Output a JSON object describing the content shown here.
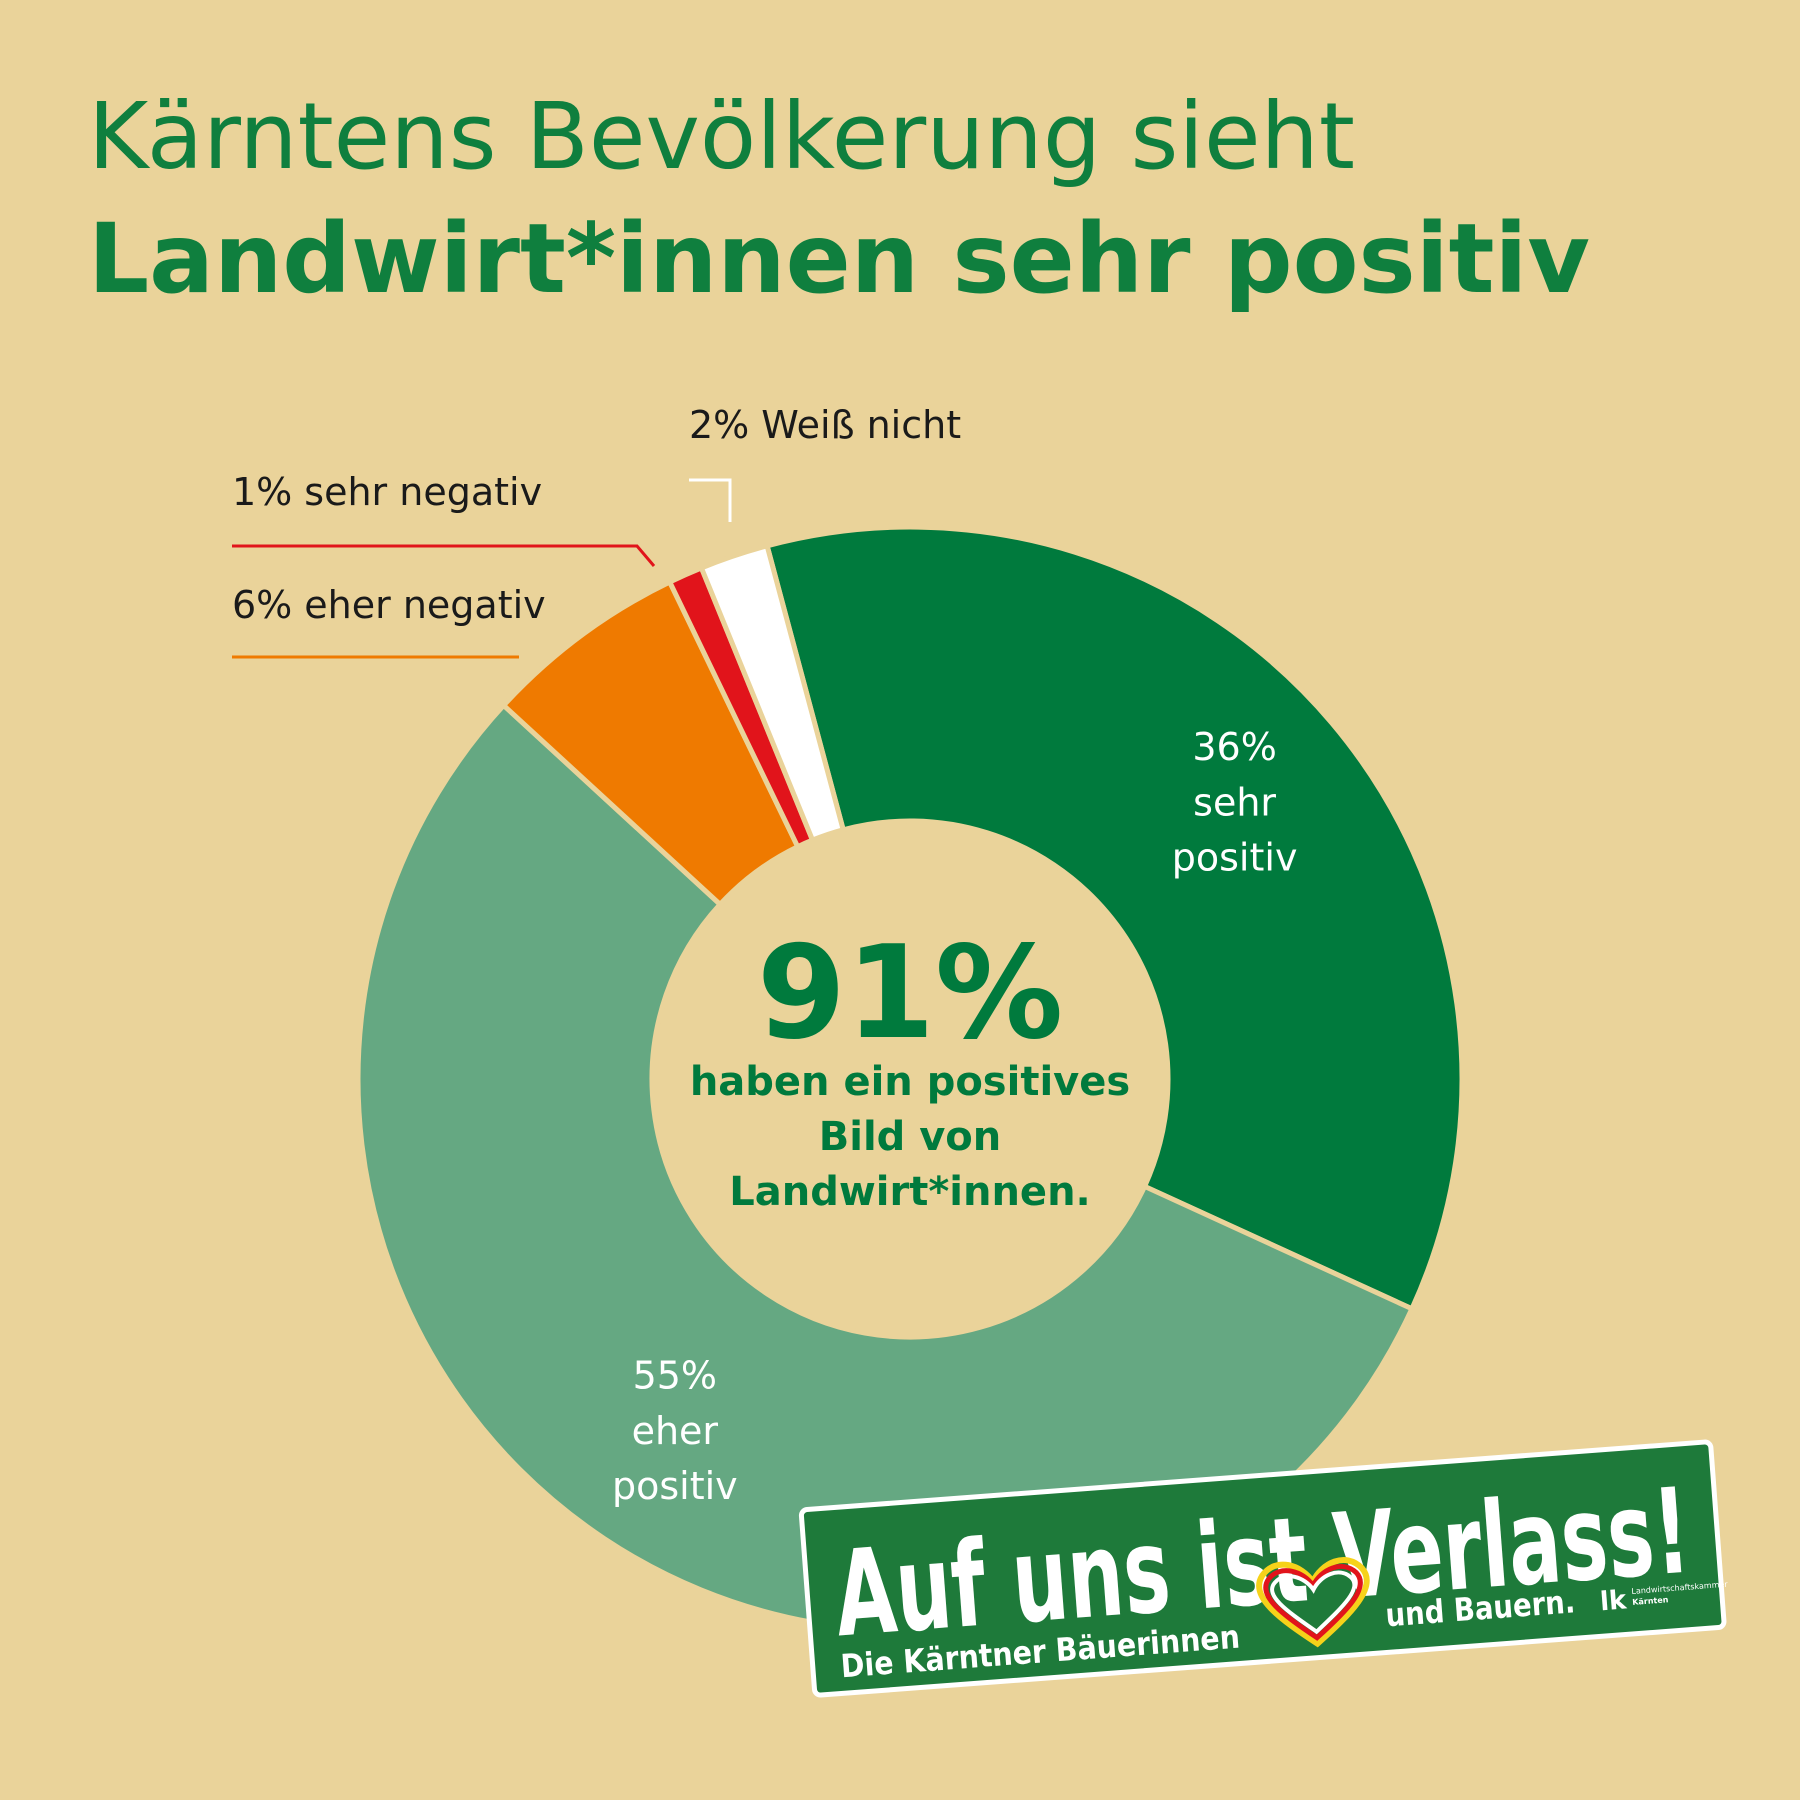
{
  "chart_data": {
    "type": "pie",
    "title": [
      "Kärntens Bevölkerung sieht",
      "Landwirt*innen sehr positiv"
    ],
    "categories": [
      "sehr positiv",
      "eher positiv",
      "eher negativ",
      "sehr negativ",
      "Weiß nicht"
    ],
    "values": [
      36,
      55,
      6,
      1,
      2
    ],
    "value_labels": [
      "36%",
      "55%",
      "6%",
      "1%",
      "2%"
    ],
    "colors": [
      "#007a3d",
      "#65a882",
      "#ef7a00",
      "#e1141b",
      "#ffffff"
    ],
    "annotation": {
      "value": "91%",
      "text": [
        "haben ein positives",
        "Bild von",
        "Landwirt*innen."
      ]
    }
  },
  "badge": {
    "slogan": "Auf uns ist Verlass!",
    "line_left": "Die Kärntner Bäuerinnen",
    "line_right": "und Bauern.",
    "logo": "lk",
    "logo_text": [
      "Landwirtschaftskammer",
      "Kärnten"
    ]
  }
}
